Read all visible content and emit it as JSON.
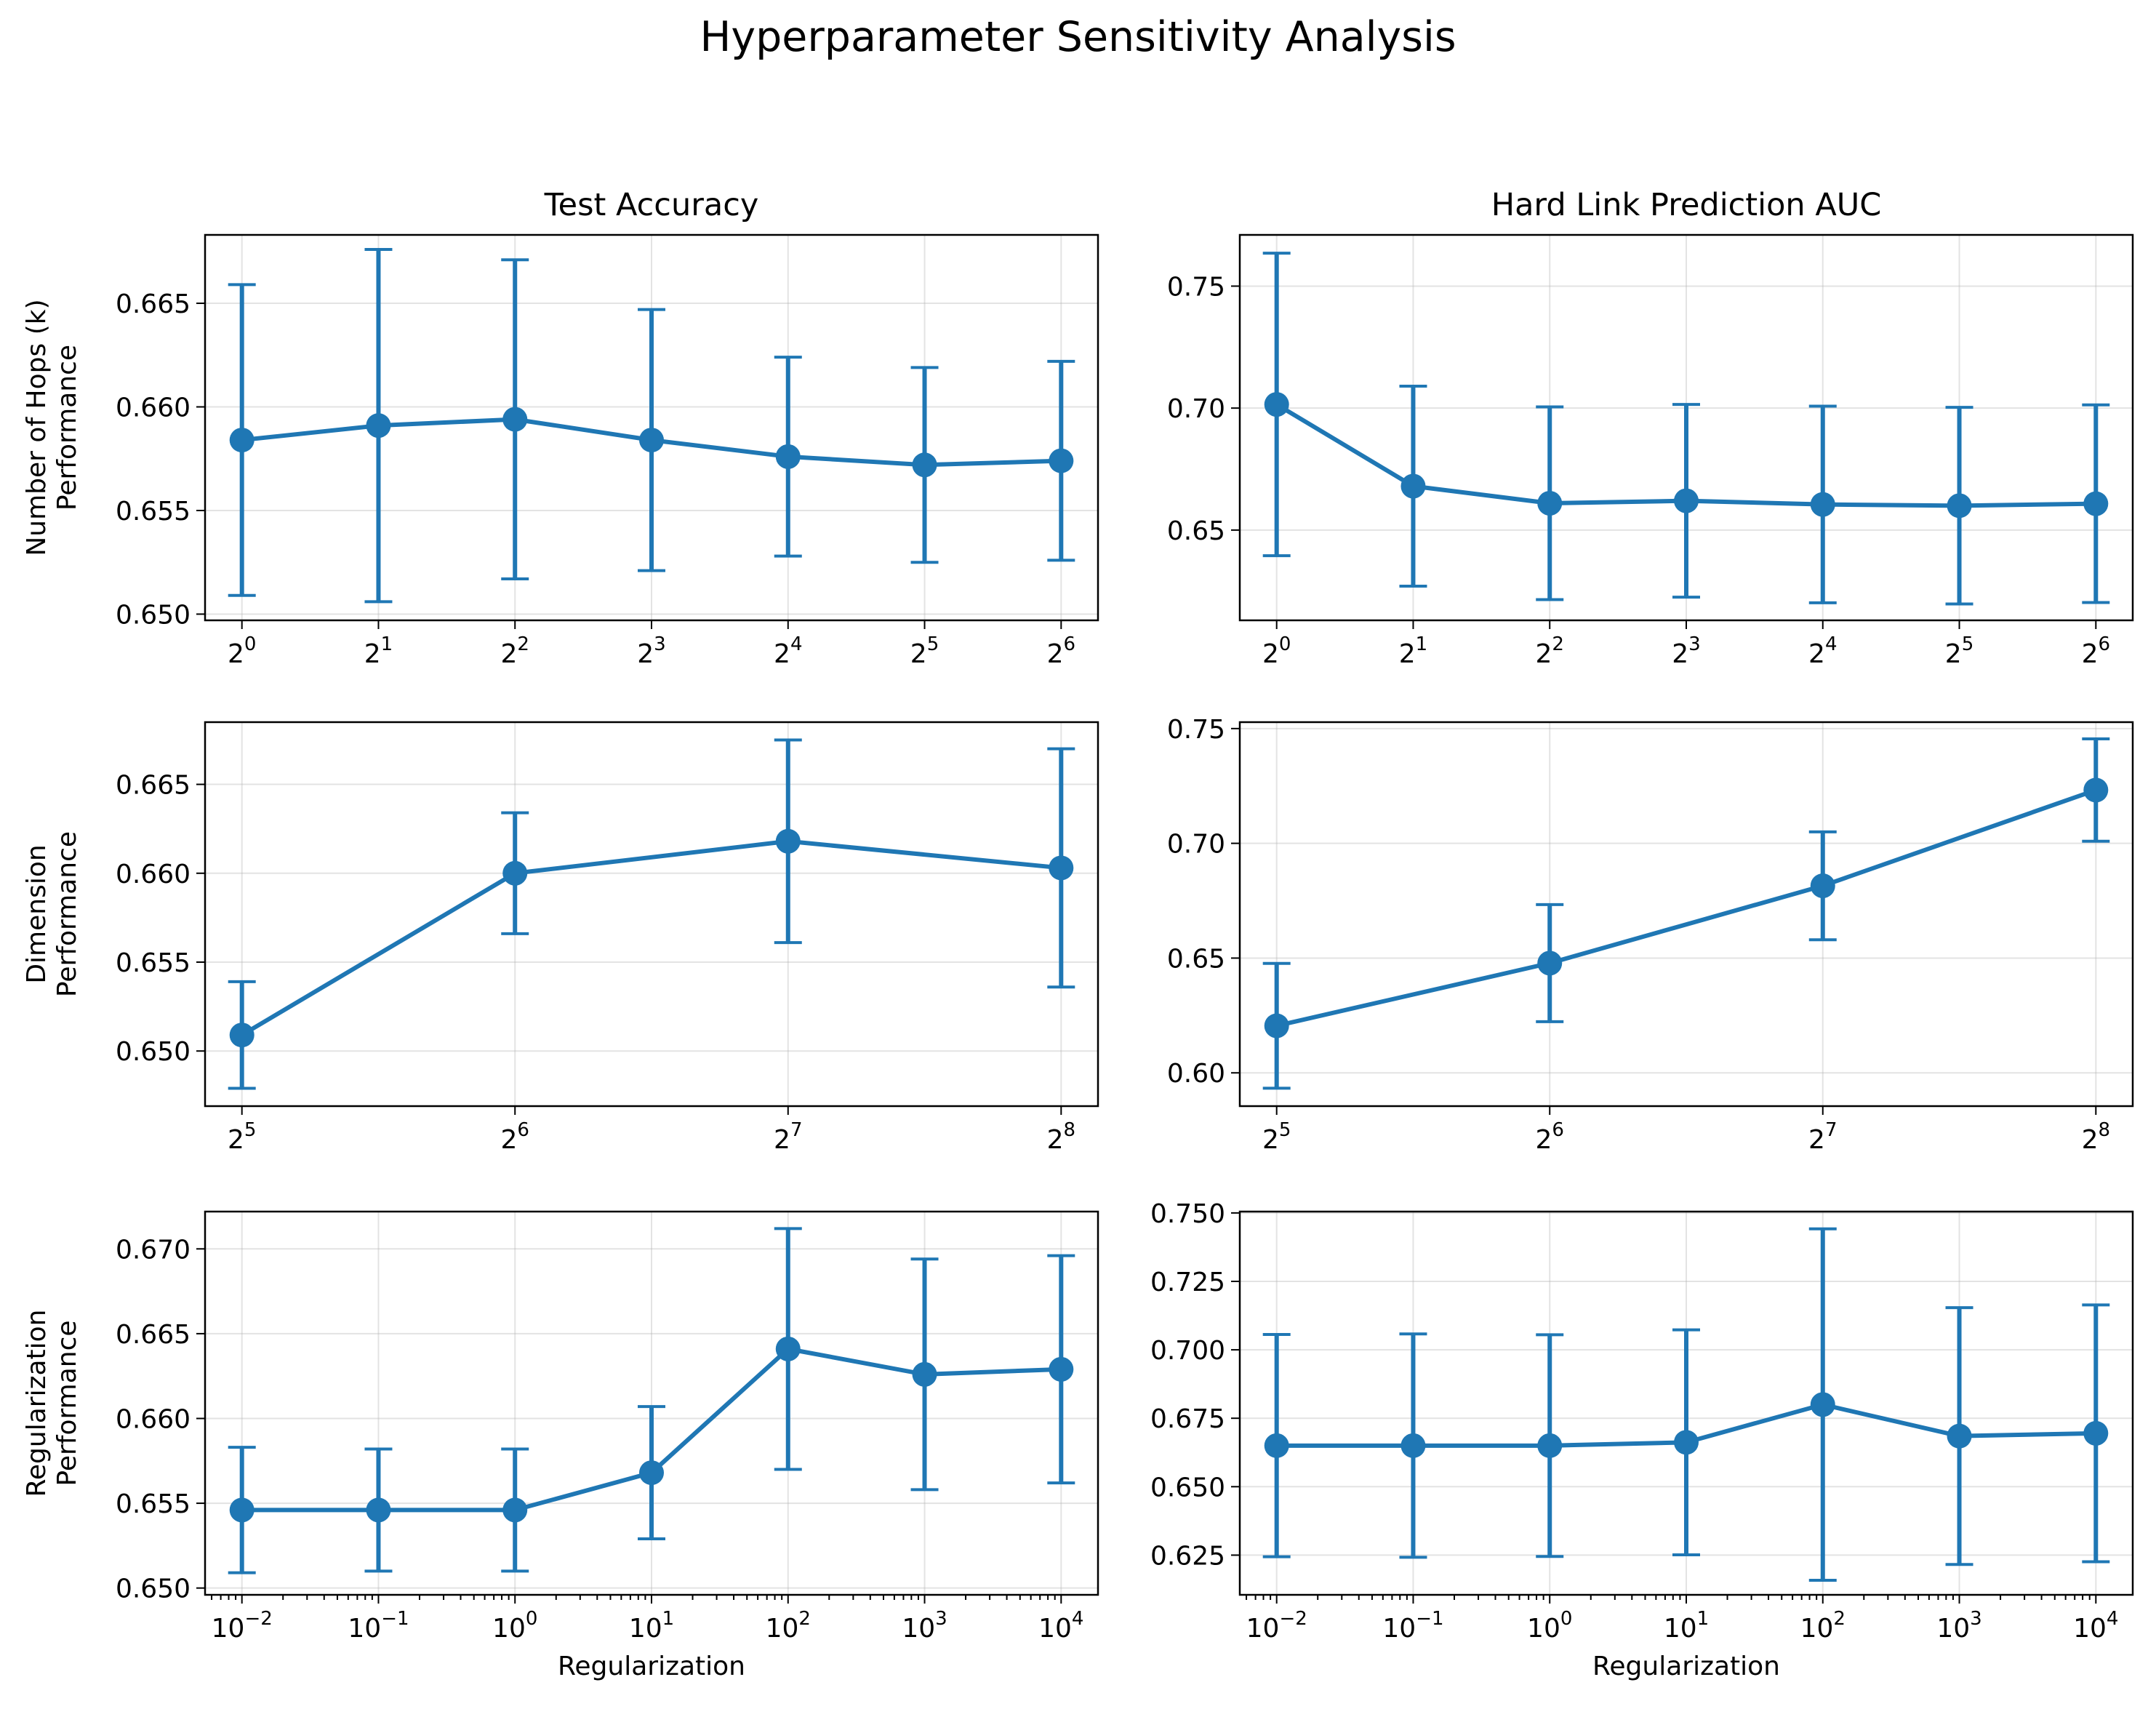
{
  "figure": {
    "title": "Hyperparameter Sensitivity Analysis"
  },
  "colors": {
    "series": "#1f77b4",
    "grid": "#b0b0b0",
    "axis": "#000000"
  },
  "chart_data": [
    {
      "type": "line",
      "panel": "top-left",
      "title": "Test Accuracy",
      "xlabel": "",
      "ylabel": [
        "Number of Hops (k)",
        "Performance"
      ],
      "xscale": "log2",
      "grid": true,
      "x": [
        1,
        2,
        4,
        8,
        16,
        32,
        64
      ],
      "x_ticklabels": [
        {
          "base": "2",
          "exp": "0"
        },
        {
          "base": "2",
          "exp": "1"
        },
        {
          "base": "2",
          "exp": "2"
        },
        {
          "base": "2",
          "exp": "3"
        },
        {
          "base": "2",
          "exp": "4"
        },
        {
          "base": "2",
          "exp": "5"
        },
        {
          "base": "2",
          "exp": "6"
        }
      ],
      "y": [
        0.6584,
        0.6591,
        0.6594,
        0.6584,
        0.6576,
        0.6572,
        0.6574
      ],
      "yerr": [
        0.0075,
        0.0085,
        0.0077,
        0.0063,
        0.0048,
        0.0047,
        0.0048
      ],
      "ylim": [
        0.6497,
        0.6683
      ],
      "yticks": [
        0.65,
        0.655,
        0.66,
        0.665
      ],
      "ytick_labels": [
        "0.650",
        "0.655",
        "0.660",
        "0.665"
      ]
    },
    {
      "type": "line",
      "panel": "top-right",
      "title": "Hard Link Prediction AUC",
      "xlabel": "",
      "ylabel": [],
      "xscale": "log2",
      "grid": true,
      "x": [
        1,
        2,
        4,
        8,
        16,
        32,
        64
      ],
      "x_ticklabels": [
        {
          "base": "2",
          "exp": "0"
        },
        {
          "base": "2",
          "exp": "1"
        },
        {
          "base": "2",
          "exp": "2"
        },
        {
          "base": "2",
          "exp": "3"
        },
        {
          "base": "2",
          "exp": "4"
        },
        {
          "base": "2",
          "exp": "5"
        },
        {
          "base": "2",
          "exp": "6"
        }
      ],
      "y": [
        0.7015,
        0.668,
        0.661,
        0.662,
        0.6605,
        0.66,
        0.6608
      ],
      "yerr": [
        0.062,
        0.041,
        0.0395,
        0.0395,
        0.0403,
        0.0403,
        0.0405
      ],
      "ylim": [
        0.613,
        0.771
      ],
      "yticks": [
        0.65,
        0.7,
        0.75
      ],
      "ytick_labels": [
        "0.65",
        "0.70",
        "0.75"
      ]
    },
    {
      "type": "line",
      "panel": "middle-left",
      "title": "",
      "xlabel": "",
      "ylabel": [
        "Dimension",
        "Performance"
      ],
      "xscale": "log2",
      "grid": true,
      "x": [
        32,
        64,
        128,
        256
      ],
      "x_ticklabels": [
        {
          "base": "2",
          "exp": "5"
        },
        {
          "base": "2",
          "exp": "6"
        },
        {
          "base": "2",
          "exp": "7"
        },
        {
          "base": "2",
          "exp": "8"
        }
      ],
      "y": [
        0.6509,
        0.66,
        0.6618,
        0.6603
      ],
      "yerr": [
        0.003,
        0.0034,
        0.0057,
        0.0067
      ],
      "ylim": [
        0.6469,
        0.6685
      ],
      "yticks": [
        0.65,
        0.655,
        0.66,
        0.665
      ],
      "ytick_labels": [
        "0.650",
        "0.655",
        "0.660",
        "0.665"
      ]
    },
    {
      "type": "line",
      "panel": "middle-right",
      "title": "",
      "xlabel": "",
      "ylabel": [],
      "xscale": "log2",
      "grid": true,
      "x": [
        32,
        64,
        128,
        256
      ],
      "x_ticklabels": [
        {
          "base": "2",
          "exp": "5"
        },
        {
          "base": "2",
          "exp": "6"
        },
        {
          "base": "2",
          "exp": "7"
        },
        {
          "base": "2",
          "exp": "8"
        }
      ],
      "y": [
        0.6205,
        0.6478,
        0.6815,
        0.7232
      ],
      "yerr": [
        0.0272,
        0.0255,
        0.0235,
        0.0223
      ],
      "ylim": [
        0.5855,
        0.7528
      ],
      "yticks": [
        0.6,
        0.65,
        0.7,
        0.75
      ],
      "ytick_labels": [
        "0.60",
        "0.65",
        "0.70",
        "0.75"
      ]
    },
    {
      "type": "line",
      "panel": "bottom-left",
      "title": "",
      "xlabel": "Regularization",
      "ylabel": [
        "Regularization",
        "Performance"
      ],
      "xscale": "log10",
      "grid": true,
      "x": [
        0.01,
        0.1,
        1,
        10,
        100,
        1000,
        10000
      ],
      "x_ticklabels": [
        {
          "base": "10",
          "exp": "−2"
        },
        {
          "base": "10",
          "exp": "−1"
        },
        {
          "base": "10",
          "exp": "0"
        },
        {
          "base": "10",
          "exp": "1"
        },
        {
          "base": "10",
          "exp": "2"
        },
        {
          "base": "10",
          "exp": "3"
        },
        {
          "base": "10",
          "exp": "4"
        }
      ],
      "y": [
        0.6546,
        0.6546,
        0.6546,
        0.6568,
        0.6641,
        0.6626,
        0.6629
      ],
      "yerr": [
        0.0037,
        0.0036,
        0.0036,
        0.0039,
        0.0071,
        0.0068,
        0.0067
      ],
      "ylim": [
        0.6496,
        0.6722
      ],
      "yticks": [
        0.65,
        0.655,
        0.66,
        0.665,
        0.67
      ],
      "ytick_labels": [
        "0.650",
        "0.655",
        "0.660",
        "0.665",
        "0.670"
      ]
    },
    {
      "type": "line",
      "panel": "bottom-right",
      "title": "",
      "xlabel": "Regularization",
      "ylabel": [],
      "xscale": "log10",
      "grid": true,
      "x": [
        0.01,
        0.1,
        1,
        10,
        100,
        1000,
        10000
      ],
      "x_ticklabels": [
        {
          "base": "10",
          "exp": "−2"
        },
        {
          "base": "10",
          "exp": "−1"
        },
        {
          "base": "10",
          "exp": "0"
        },
        {
          "base": "10",
          "exp": "1"
        },
        {
          "base": "10",
          "exp": "2"
        },
        {
          "base": "10",
          "exp": "3"
        },
        {
          "base": "10",
          "exp": "4"
        }
      ],
      "y": [
        0.665,
        0.665,
        0.665,
        0.6662,
        0.68,
        0.6685,
        0.6695
      ],
      "yerr": [
        0.0406,
        0.0408,
        0.0405,
        0.0411,
        0.0642,
        0.0469,
        0.0469
      ],
      "ylim": [
        0.6105,
        0.7505
      ],
      "yticks": [
        0.625,
        0.65,
        0.675,
        0.7,
        0.725,
        0.75
      ],
      "ytick_labels": [
        "0.625",
        "0.650",
        "0.675",
        "0.700",
        "0.725",
        "0.750"
      ]
    }
  ]
}
